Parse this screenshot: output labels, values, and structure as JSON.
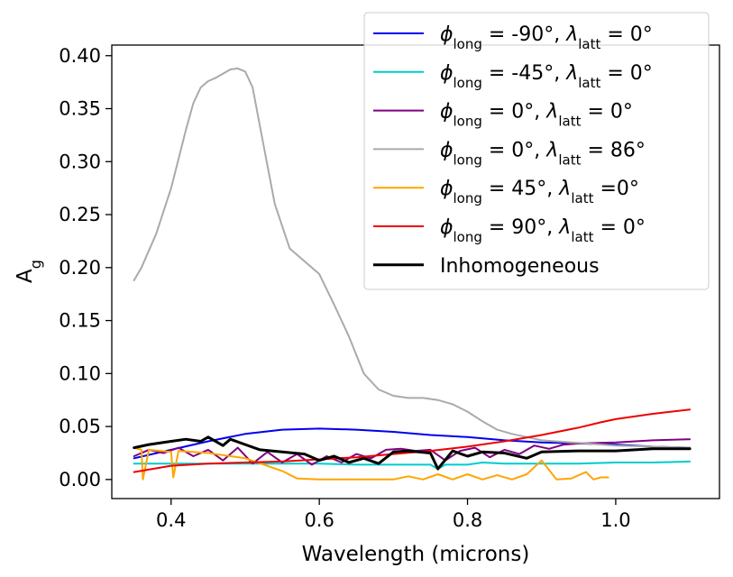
{
  "chart_data": {
    "type": "line",
    "title": "",
    "xlabel": "Wavelength (microns)",
    "ylabel": "A",
    "ylabel_sub": "g",
    "xlim": [
      0.32,
      1.14
    ],
    "ylim": [
      -0.018,
      0.41
    ],
    "xticks": [
      0.4,
      0.6,
      0.8,
      1.0
    ],
    "xtick_labels": [
      "0.4",
      "0.6",
      "0.8",
      "1.0"
    ],
    "yticks": [
      0.0,
      0.05,
      0.1,
      0.15,
      0.2,
      0.25,
      0.3,
      0.35,
      0.4
    ],
    "ytick_labels": [
      "0.00",
      "0.05",
      "0.10",
      "0.15",
      "0.20",
      "0.25",
      "0.30",
      "0.35",
      "0.40"
    ],
    "grid": false,
    "legend_position": "top-right",
    "series": [
      {
        "name_parts": [
          "ϕ",
          "long",
          " = -90°, ",
          "λ",
          "latt",
          " = 0°"
        ],
        "color": "#0000ee",
        "x": [
          0.35,
          0.4,
          0.45,
          0.5,
          0.55,
          0.6,
          0.65,
          0.7,
          0.75,
          0.8,
          0.85,
          0.9,
          0.95,
          1.0,
          1.05,
          1.1
        ],
        "y": [
          0.02,
          0.028,
          0.036,
          0.043,
          0.047,
          0.048,
          0.047,
          0.045,
          0.042,
          0.04,
          0.037,
          0.035,
          0.034,
          0.033,
          0.031,
          0.03
        ]
      },
      {
        "name_parts": [
          "ϕ",
          "long",
          " = -45°, ",
          "λ",
          "latt",
          " = 0°"
        ],
        "color": "#00cccc",
        "x": [
          0.35,
          0.4,
          0.45,
          0.5,
          0.55,
          0.6,
          0.65,
          0.7,
          0.75,
          0.76,
          0.77,
          0.8,
          0.82,
          0.85,
          0.9,
          0.95,
          1.0,
          1.05,
          1.1
        ],
        "y": [
          0.015,
          0.015,
          0.015,
          0.015,
          0.015,
          0.015,
          0.014,
          0.014,
          0.014,
          0.01,
          0.014,
          0.014,
          0.016,
          0.015,
          0.015,
          0.015,
          0.016,
          0.016,
          0.017
        ]
      },
      {
        "name_parts": [
          "ϕ",
          "long",
          " = 0°, ",
          "λ",
          "latt",
          " = 0°"
        ],
        "color": "#800080",
        "x": [
          0.35,
          0.37,
          0.39,
          0.41,
          0.43,
          0.45,
          0.47,
          0.49,
          0.51,
          0.53,
          0.55,
          0.57,
          0.59,
          0.61,
          0.63,
          0.65,
          0.67,
          0.69,
          0.71,
          0.73,
          0.75,
          0.77,
          0.79,
          0.81,
          0.83,
          0.85,
          0.87,
          0.89,
          0.91,
          0.93,
          0.95,
          1.0,
          1.05,
          1.1
        ],
        "y": [
          0.022,
          0.028,
          0.025,
          0.03,
          0.022,
          0.028,
          0.018,
          0.03,
          0.015,
          0.026,
          0.016,
          0.024,
          0.014,
          0.022,
          0.016,
          0.024,
          0.02,
          0.028,
          0.029,
          0.027,
          0.028,
          0.018,
          0.027,
          0.03,
          0.021,
          0.028,
          0.024,
          0.032,
          0.029,
          0.033,
          0.034,
          0.035,
          0.037,
          0.038
        ]
      },
      {
        "name_parts": [
          "ϕ",
          "long",
          " = 0°, ",
          "λ",
          "latt",
          " = 86°"
        ],
        "color": "#aaaaaa",
        "x": [
          0.35,
          0.36,
          0.38,
          0.4,
          0.42,
          0.43,
          0.44,
          0.45,
          0.46,
          0.47,
          0.48,
          0.49,
          0.5,
          0.51,
          0.52,
          0.54,
          0.56,
          0.58,
          0.6,
          0.62,
          0.64,
          0.66,
          0.68,
          0.7,
          0.72,
          0.74,
          0.76,
          0.78,
          0.8,
          0.82,
          0.84,
          0.86,
          0.88,
          0.9,
          0.94,
          1.0,
          1.05,
          1.1
        ],
        "y": [
          0.188,
          0.2,
          0.232,
          0.275,
          0.33,
          0.355,
          0.37,
          0.376,
          0.379,
          0.383,
          0.387,
          0.388,
          0.385,
          0.37,
          0.333,
          0.26,
          0.218,
          0.206,
          0.194,
          0.165,
          0.135,
          0.1,
          0.085,
          0.079,
          0.077,
          0.077,
          0.075,
          0.071,
          0.064,
          0.055,
          0.047,
          0.043,
          0.04,
          0.037,
          0.035,
          0.032,
          0.031,
          0.03
        ]
      },
      {
        "name_parts": [
          "ϕ",
          "long",
          " = 45°, ",
          "λ",
          "latt",
          " =0°"
        ],
        "color": "#ffa500",
        "x": [
          0.35,
          0.36,
          0.362,
          0.37,
          0.4,
          0.403,
          0.41,
          0.45,
          0.5,
          0.55,
          0.57,
          0.6,
          0.65,
          0.7,
          0.72,
          0.74,
          0.76,
          0.78,
          0.8,
          0.82,
          0.84,
          0.86,
          0.88,
          0.9,
          0.92,
          0.94,
          0.96,
          0.97,
          0.98,
          0.99
        ],
        "y": [
          0.03,
          0.028,
          0.0,
          0.028,
          0.026,
          0.002,
          0.027,
          0.025,
          0.02,
          0.008,
          0.001,
          0.0,
          0.0,
          0.0,
          0.003,
          0.0,
          0.005,
          0.0,
          0.005,
          0.0,
          0.004,
          0.0,
          0.005,
          0.018,
          0.0,
          0.001,
          0.007,
          0.0,
          0.002,
          0.002
        ]
      },
      {
        "name_parts": [
          "ϕ",
          "long",
          " = 90°, ",
          "λ",
          "latt",
          " = 0°"
        ],
        "color": "#ee0000",
        "x": [
          0.35,
          0.4,
          0.45,
          0.5,
          0.55,
          0.6,
          0.65,
          0.7,
          0.75,
          0.8,
          0.85,
          0.9,
          0.95,
          0.98,
          1.0,
          1.05,
          1.1
        ],
        "y": [
          0.007,
          0.013,
          0.015,
          0.016,
          0.017,
          0.019,
          0.021,
          0.024,
          0.027,
          0.031,
          0.036,
          0.042,
          0.049,
          0.054,
          0.057,
          0.062,
          0.066
        ]
      },
      {
        "name_parts": [
          "Inhomogeneous"
        ],
        "color": "#000000",
        "x": [
          0.35,
          0.37,
          0.4,
          0.42,
          0.44,
          0.45,
          0.47,
          0.48,
          0.5,
          0.52,
          0.55,
          0.58,
          0.6,
          0.62,
          0.64,
          0.66,
          0.68,
          0.7,
          0.72,
          0.75,
          0.76,
          0.78,
          0.8,
          0.82,
          0.85,
          0.88,
          0.9,
          0.95,
          1.0,
          1.05,
          1.1
        ],
        "y": [
          0.03,
          0.033,
          0.036,
          0.038,
          0.036,
          0.04,
          0.032,
          0.038,
          0.033,
          0.028,
          0.026,
          0.024,
          0.018,
          0.022,
          0.016,
          0.02,
          0.015,
          0.026,
          0.027,
          0.025,
          0.01,
          0.027,
          0.022,
          0.026,
          0.025,
          0.02,
          0.026,
          0.027,
          0.027,
          0.029,
          0.029
        ]
      }
    ]
  }
}
